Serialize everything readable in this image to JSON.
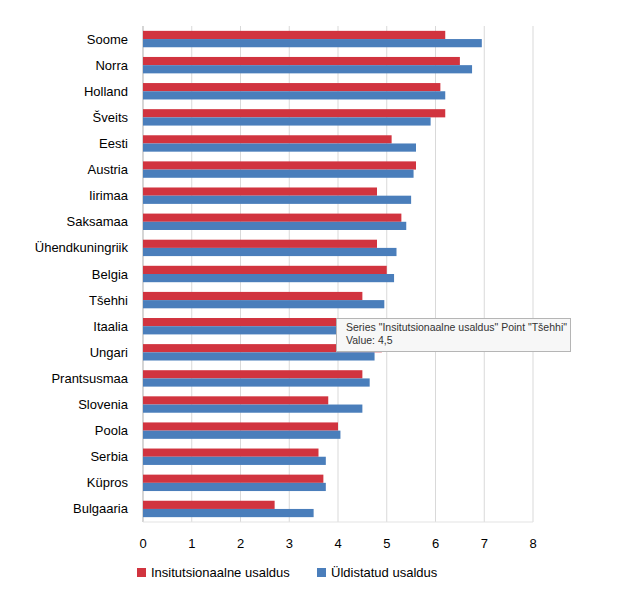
{
  "chart_data": {
    "type": "bar",
    "orientation": "horizontal",
    "categories": [
      "Soome",
      "Norra",
      "Holland",
      "Šveits",
      "Eesti",
      "Austria",
      "Iirimaa",
      "Saksamaa",
      "Ühendkuningriik",
      "Belgia",
      "Tšehhi",
      "Itaalia",
      "Ungari",
      "Prantsusmaa",
      "Slovenia",
      "Poola",
      "Serbia",
      "Küpros",
      "Bulgaaria"
    ],
    "series": [
      {
        "name": "Insitutsionaalne usaldus",
        "color": "#d1343f",
        "values": [
          6.2,
          6.5,
          6.1,
          6.2,
          5.1,
          5.6,
          4.8,
          5.3,
          4.8,
          5.0,
          4.5,
          4.0,
          4.9,
          4.5,
          3.8,
          4.0,
          3.6,
          3.7,
          2.7
        ]
      },
      {
        "name": "Üldistatud usaldus",
        "color": "#4a7ebb",
        "values": [
          6.95,
          6.75,
          6.2,
          5.9,
          5.6,
          5.55,
          5.5,
          5.4,
          5.2,
          5.15,
          4.95,
          4.7,
          4.75,
          4.65,
          4.5,
          4.05,
          3.75,
          3.75,
          3.5
        ]
      }
    ],
    "xlim": [
      0,
      8
    ],
    "xticks": [
      0,
      1,
      2,
      3,
      4,
      5,
      6,
      7,
      8
    ],
    "grid": true,
    "legend": "bottom",
    "annotations": [
      "Series \"Insitutsionaalne usaldus\" Point \"Tšehhi\"",
      "Value: 4,5"
    ]
  }
}
